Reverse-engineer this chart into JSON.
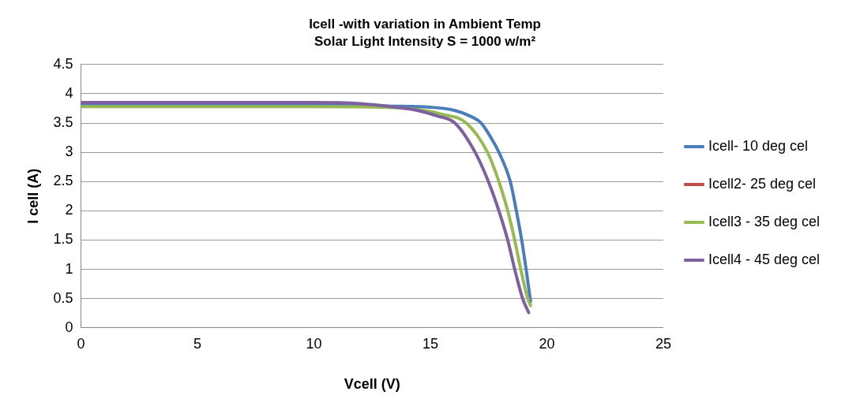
{
  "chart_data": {
    "type": "line",
    "title": "Icell -with variation in Ambient Temp",
    "subtitle": "Solar Light Intensity S = 1000 w/m²",
    "xlabel": "Vcell (V)",
    "ylabel": "I cell (A)",
    "xlim": [
      0,
      25
    ],
    "xticks": [
      0,
      5,
      10,
      15,
      20,
      25
    ],
    "ylim": [
      0,
      4.5
    ],
    "yticks": [
      0,
      0.5,
      1,
      1.5,
      2,
      2.5,
      3,
      3.5,
      4,
      4.5
    ],
    "grid": "y",
    "legend": "right",
    "marker": "none",
    "line_style": "solid",
    "series": [
      {
        "name": "Icell- 10 deg cel",
        "color": "#4a7ebb",
        "x": [
          0,
          10,
          13,
          15,
          16,
          16.7,
          17.18,
          17.6,
          17.94,
          18.43,
          18.69,
          18.92,
          19.11,
          19.3
        ],
        "values": [
          3.8,
          3.8,
          3.79,
          3.77,
          3.72,
          3.62,
          3.5,
          3.25,
          3.0,
          2.5,
          2.0,
          1.5,
          1.0,
          0.45
        ]
      },
      {
        "name": "Icell2- 25 deg cel",
        "color": "#be4b48"
      },
      {
        "name": "Icell3 - 35 deg cel",
        "color": "#98b954",
        "x": [
          0,
          10,
          13,
          14.5,
          15.5,
          16.54,
          17.45,
          17.94,
          18.32,
          18.62,
          18.88,
          19.18,
          19.3
        ],
        "values": [
          3.78,
          3.78,
          3.77,
          3.73,
          3.65,
          3.5,
          3.0,
          2.5,
          2.0,
          1.5,
          1.0,
          0.5,
          0.38
        ]
      },
      {
        "name": "Icell4 - 45 deg cel",
        "color": "#7d60a0",
        "x": [
          0,
          10,
          12,
          13.5,
          14.4,
          15.3,
          16.05,
          16.92,
          17.49,
          17.94,
          18.32,
          18.62,
          18.96,
          19.22
        ],
        "values": [
          3.85,
          3.85,
          3.83,
          3.77,
          3.72,
          3.62,
          3.5,
          3.0,
          2.5,
          2.0,
          1.5,
          1.0,
          0.5,
          0.26
        ]
      }
    ]
  }
}
